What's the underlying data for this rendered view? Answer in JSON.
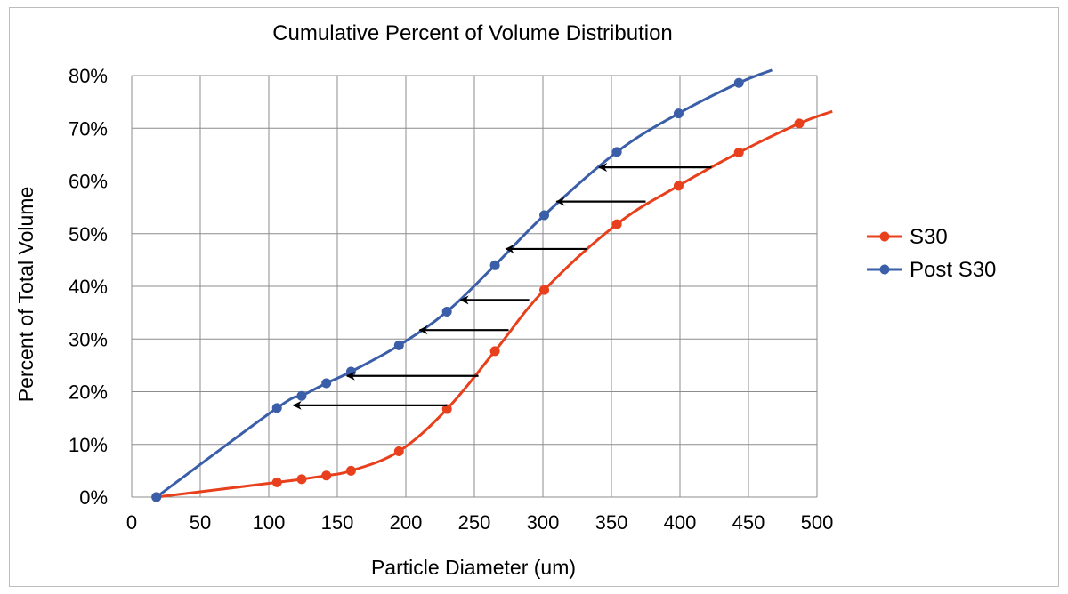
{
  "chart_data": {
    "type": "line",
    "title": "Cumulative Percent of Volume Distribution",
    "xlabel": "Particle Diameter (um)",
    "ylabel": "Percent of Total Volume",
    "xlim": [
      0,
      500
    ],
    "ylim": [
      0,
      80
    ],
    "x_ticks": [
      "0",
      "50",
      "100",
      "150",
      "200",
      "250",
      "300",
      "350",
      "400",
      "450",
      "500"
    ],
    "y_ticks": [
      "0%",
      "10%",
      "20%",
      "30%",
      "40%",
      "50%",
      "60%",
      "70%",
      "80%"
    ],
    "grid": true,
    "legend_position": "right",
    "series": [
      {
        "name": "S30",
        "color": "#e8401c",
        "x": [
          18,
          106,
          124,
          142,
          160,
          195,
          230,
          265,
          301,
          354,
          399,
          443,
          487
        ],
        "y": [
          0,
          2.8,
          3.4,
          4.1,
          5.0,
          8.7,
          16.7,
          27.7,
          39.3,
          51.8,
          59.1,
          65.4,
          70.9
        ]
      },
      {
        "name": "Post S30",
        "color": "#3a5ea8",
        "x": [
          18,
          106,
          124,
          142,
          160,
          195,
          230,
          265,
          301,
          354,
          399,
          443
        ],
        "y": [
          0,
          16.9,
          19.2,
          21.6,
          23.8,
          28.8,
          35.2,
          44.0,
          53.5,
          65.5,
          72.8,
          78.6
        ]
      }
    ],
    "annotations": {
      "type": "arrows",
      "description_units": "data",
      "arrows": [
        {
          "from": [
            230,
            17.4
          ],
          "to": [
            118,
            17.4
          ]
        },
        {
          "from": [
            253,
            23.0
          ],
          "to": [
            157,
            23.0
          ]
        },
        {
          "from": [
            275,
            31.7
          ],
          "to": [
            210,
            31.7
          ]
        },
        {
          "from": [
            290,
            37.4
          ],
          "to": [
            240,
            37.4
          ]
        },
        {
          "from": [
            332,
            47.1
          ],
          "to": [
            273,
            47.1
          ]
        },
        {
          "from": [
            375,
            56.1
          ],
          "to": [
            310,
            56.1
          ]
        },
        {
          "from": [
            423,
            62.6
          ],
          "to": [
            341,
            62.6
          ]
        }
      ]
    }
  }
}
